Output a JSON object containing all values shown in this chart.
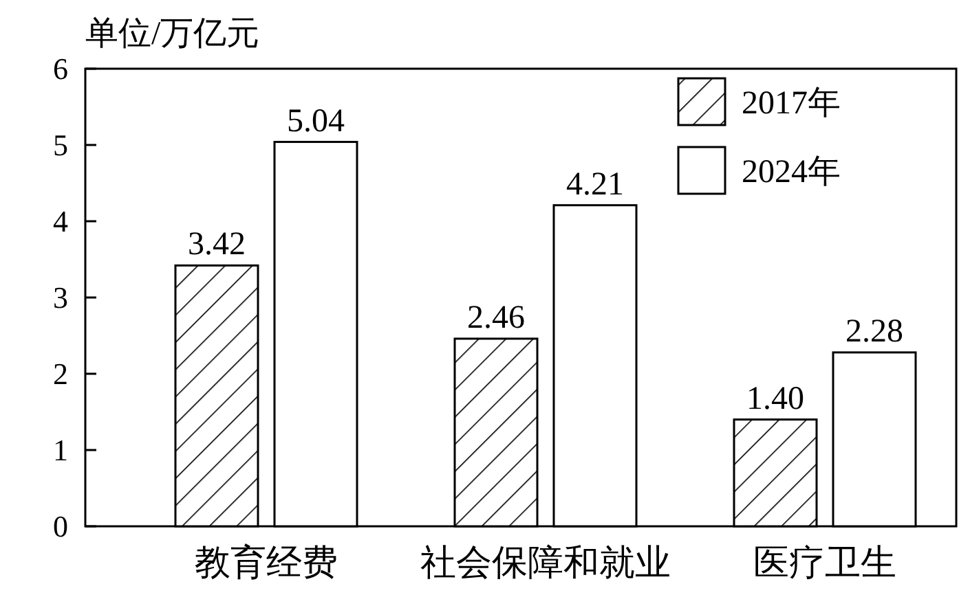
{
  "chart_data": {
    "type": "bar",
    "ylabel": "单位/万亿元",
    "categories": [
      "教育经费",
      "社会保障和就业",
      "医疗卫生"
    ],
    "series": [
      {
        "name": "2017年",
        "color": "#000000",
        "values": [
          3.42,
          2.46,
          1.4
        ]
      },
      {
        "name": "2024年",
        "color": "#ffffff",
        "values": [
          5.04,
          4.21,
          2.28
        ]
      }
    ],
    "value_labels": [
      [
        "3.42",
        "2.46",
        "1.40"
      ],
      [
        "5.04",
        "4.21",
        "2.28"
      ]
    ],
    "ylim": [
      0,
      6
    ],
    "yticks": [
      0,
      1,
      2,
      3,
      4,
      5,
      6
    ],
    "legend": "top right"
  }
}
